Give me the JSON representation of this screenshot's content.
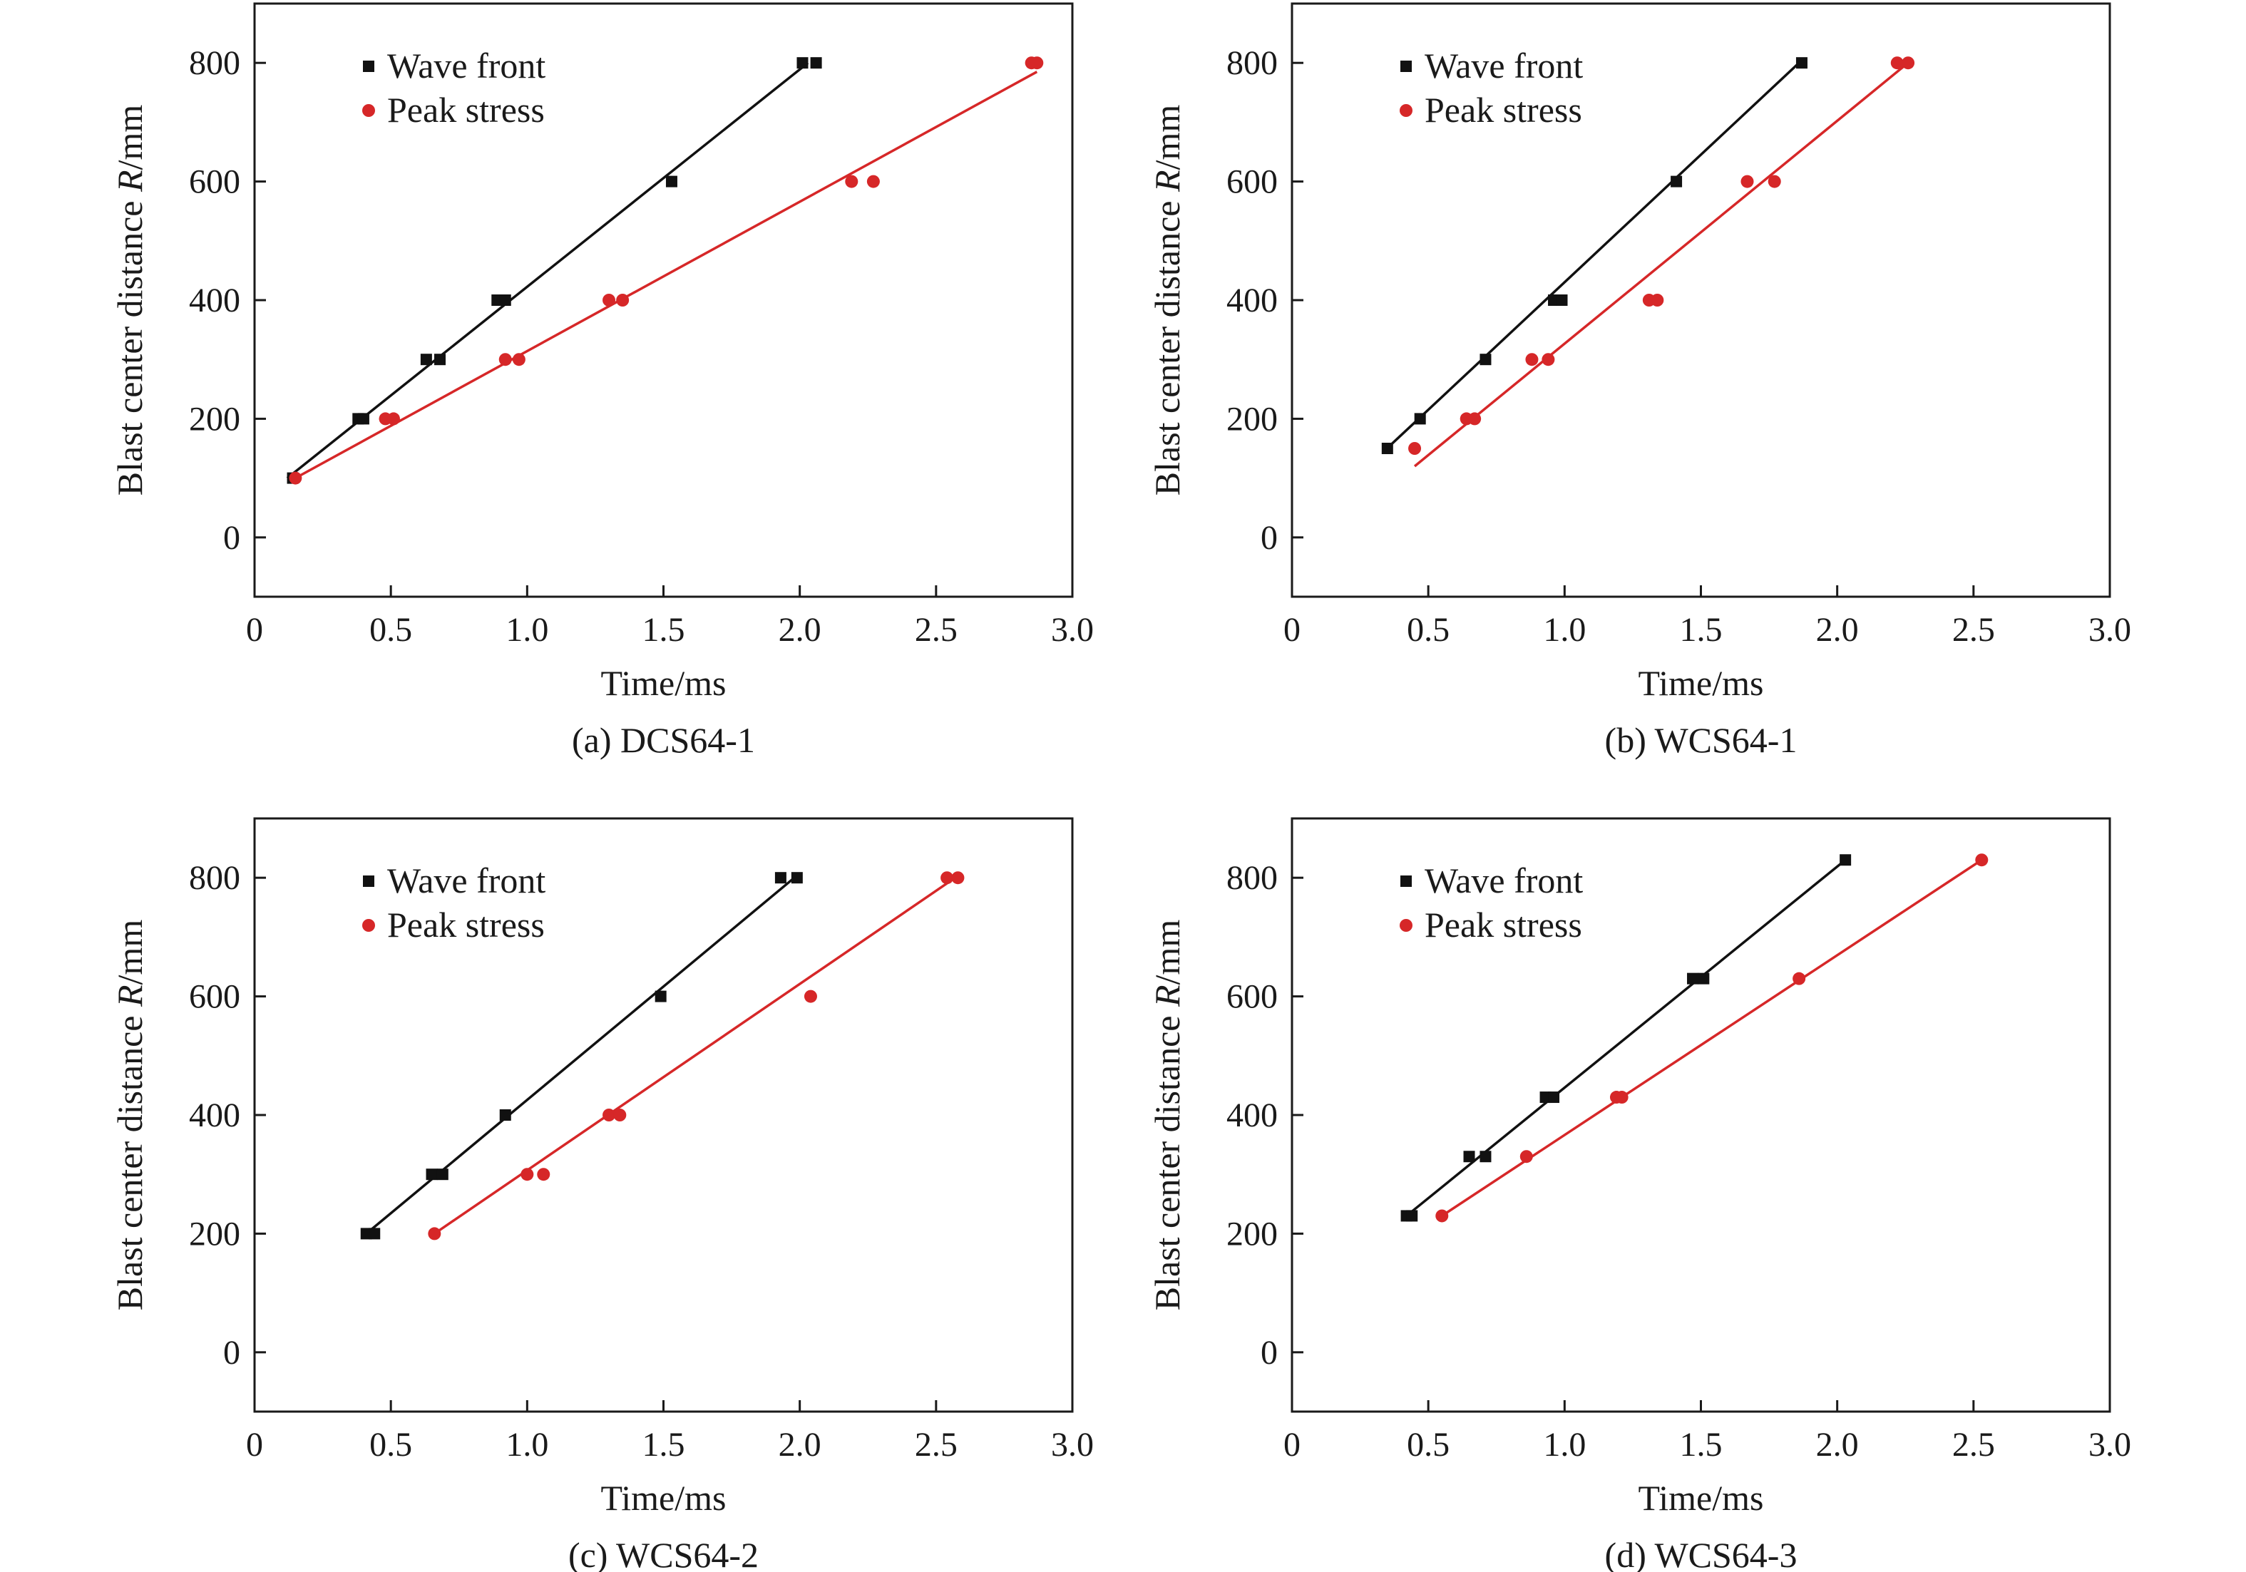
{
  "figure": {
    "colors": {
      "wave_front": "#111111",
      "peak_stress": "#d62728",
      "axes": "#1a1a1a"
    }
  },
  "chart_data": [
    {
      "type": "scatter",
      "caption": "(a) DCS64-1",
      "xlabel": "Time/ms",
      "ylabel_prefix": "Blast center distance ",
      "ylabel_var": "R",
      "ylabel_unit": "/mm",
      "xlim": [
        0,
        3.0
      ],
      "ylim": [
        -100,
        900
      ],
      "xticks": [
        0,
        0.5,
        1.0,
        1.5,
        2.0,
        2.5,
        3.0
      ],
      "xtick_labels": [
        "0",
        "0.5",
        "1.0",
        "1.5",
        "2.0",
        "2.5",
        "3.0"
      ],
      "yticks": [
        0,
        200,
        400,
        600,
        800
      ],
      "ytick_labels": [
        "0",
        "200",
        "400",
        "600",
        "800"
      ],
      "grid": false,
      "legend_position": "top-left",
      "series": [
        {
          "name": "Wave front",
          "marker": "square",
          "color": "#111111",
          "points": [
            [
              0.14,
              100
            ],
            [
              0.38,
              200
            ],
            [
              0.4,
              200
            ],
            [
              0.63,
              300
            ],
            [
              0.68,
              300
            ],
            [
              0.89,
              400
            ],
            [
              0.92,
              400
            ],
            [
              1.53,
              600
            ],
            [
              2.01,
              800
            ],
            [
              2.06,
              800
            ]
          ],
          "fit": [
            [
              0.12,
              100
            ],
            [
              2.03,
              800
            ]
          ]
        },
        {
          "name": "Peak stress",
          "marker": "circle",
          "color": "#d62728",
          "points": [
            [
              0.15,
              100
            ],
            [
              0.48,
              200
            ],
            [
              0.51,
              200
            ],
            [
              0.92,
              300
            ],
            [
              0.97,
              300
            ],
            [
              1.3,
              400
            ],
            [
              1.35,
              400
            ],
            [
              2.19,
              600
            ],
            [
              2.27,
              600
            ],
            [
              2.85,
              800
            ],
            [
              2.87,
              800
            ]
          ],
          "fit": [
            [
              0.13,
              95
            ],
            [
              2.87,
              785
            ]
          ]
        }
      ]
    },
    {
      "type": "scatter",
      "caption": "(b) WCS64-1",
      "xlabel": "Time/ms",
      "ylabel_prefix": "Blast center distance ",
      "ylabel_var": "R",
      "ylabel_unit": "/mm",
      "xlim": [
        0,
        3.0
      ],
      "ylim": [
        -100,
        900
      ],
      "xticks": [
        0,
        0.5,
        1.0,
        1.5,
        2.0,
        2.5,
        3.0
      ],
      "xtick_labels": [
        "0",
        "0.5",
        "1.0",
        "1.5",
        "2.0",
        "2.5",
        "3.0"
      ],
      "yticks": [
        0,
        200,
        400,
        600,
        800
      ],
      "ytick_labels": [
        "0",
        "200",
        "400",
        "600",
        "800"
      ],
      "grid": false,
      "legend_position": "top-left",
      "series": [
        {
          "name": "Wave front",
          "marker": "square",
          "color": "#111111",
          "points": [
            [
              0.35,
              150
            ],
            [
              0.47,
              200
            ],
            [
              0.71,
              300
            ],
            [
              0.96,
              400
            ],
            [
              0.99,
              400
            ],
            [
              1.41,
              600
            ],
            [
              1.87,
              800
            ]
          ],
          "fit": [
            [
              0.36,
              155
            ],
            [
              1.86,
              800
            ]
          ]
        },
        {
          "name": "Peak stress",
          "marker": "circle",
          "color": "#d62728",
          "points": [
            [
              0.45,
              150
            ],
            [
              0.64,
              200
            ],
            [
              0.67,
              200
            ],
            [
              0.88,
              300
            ],
            [
              0.94,
              300
            ],
            [
              1.31,
              400
            ],
            [
              1.34,
              400
            ],
            [
              1.67,
              600
            ],
            [
              1.77,
              600
            ],
            [
              2.22,
              800
            ],
            [
              2.26,
              800
            ]
          ],
          "fit": [
            [
              0.45,
              120
            ],
            [
              2.26,
              800
            ]
          ]
        }
      ]
    },
    {
      "type": "scatter",
      "caption": "(c) WCS64-2",
      "xlabel": "Time/ms",
      "ylabel_prefix": "Blast center distance ",
      "ylabel_var": "R",
      "ylabel_unit": "/mm",
      "xlim": [
        0,
        3.0
      ],
      "ylim": [
        -100,
        900
      ],
      "xticks": [
        0,
        0.5,
        1.0,
        1.5,
        2.0,
        2.5,
        3.0
      ],
      "xtick_labels": [
        "0",
        "0.5",
        "1.0",
        "1.5",
        "2.0",
        "2.5",
        "3.0"
      ],
      "yticks": [
        0,
        200,
        400,
        600,
        800
      ],
      "ytick_labels": [
        "0",
        "200",
        "400",
        "600",
        "800"
      ],
      "grid": false,
      "legend_position": "top-left",
      "series": [
        {
          "name": "Wave front",
          "marker": "square",
          "color": "#111111",
          "points": [
            [
              0.41,
              200
            ],
            [
              0.44,
              200
            ],
            [
              0.65,
              300
            ],
            [
              0.69,
              300
            ],
            [
              0.92,
              400
            ],
            [
              1.49,
              600
            ],
            [
              1.93,
              800
            ],
            [
              1.99,
              800
            ]
          ],
          "fit": [
            [
              0.41,
              200
            ],
            [
              1.98,
              800
            ]
          ]
        },
        {
          "name": "Peak stress",
          "marker": "circle",
          "color": "#d62728",
          "points": [
            [
              0.66,
              200
            ],
            [
              1.0,
              300
            ],
            [
              1.06,
              300
            ],
            [
              1.3,
              400
            ],
            [
              1.34,
              400
            ],
            [
              2.04,
              600
            ],
            [
              2.54,
              800
            ],
            [
              2.58,
              800
            ]
          ],
          "fit": [
            [
              0.66,
              200
            ],
            [
              2.57,
              800
            ]
          ]
        }
      ]
    },
    {
      "type": "scatter",
      "caption": "(d) WCS64-3",
      "xlabel": "Time/ms",
      "ylabel_prefix": "Blast center distance ",
      "ylabel_var": "R",
      "ylabel_unit": "/mm",
      "xlim": [
        0,
        3.0
      ],
      "ylim": [
        -100,
        900
      ],
      "xticks": [
        0,
        0.5,
        1.0,
        1.5,
        2.0,
        2.5,
        3.0
      ],
      "xtick_labels": [
        "0",
        "0.5",
        "1.0",
        "1.5",
        "2.0",
        "2.5",
        "3.0"
      ],
      "yticks": [
        0,
        200,
        400,
        600,
        800
      ],
      "ytick_labels": [
        "0",
        "200",
        "400",
        "600",
        "800"
      ],
      "grid": false,
      "legend_position": "top-left",
      "series": [
        {
          "name": "Wave front",
          "marker": "square",
          "color": "#111111",
          "points": [
            [
              0.42,
              230
            ],
            [
              0.44,
              230
            ],
            [
              0.65,
              330
            ],
            [
              0.71,
              330
            ],
            [
              0.93,
              430
            ],
            [
              0.96,
              430
            ],
            [
              1.47,
              630
            ],
            [
              1.51,
              630
            ],
            [
              2.03,
              830
            ]
          ],
          "fit": [
            [
              0.42,
              230
            ],
            [
              2.03,
              830
            ]
          ]
        },
        {
          "name": "Peak stress",
          "marker": "circle",
          "color": "#d62728",
          "points": [
            [
              0.55,
              230
            ],
            [
              0.86,
              330
            ],
            [
              1.19,
              430
            ],
            [
              1.21,
              430
            ],
            [
              1.86,
              630
            ],
            [
              2.53,
              830
            ]
          ],
          "fit": [
            [
              0.55,
              230
            ],
            [
              2.53,
              830
            ]
          ]
        }
      ]
    }
  ]
}
